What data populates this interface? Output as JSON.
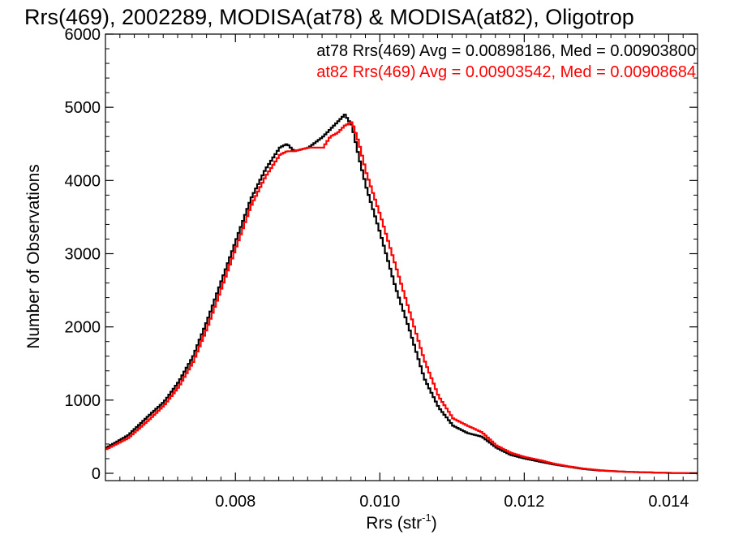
{
  "chart_data": {
    "type": "line",
    "title": "Rrs(469), 2002289, MODISA(at78) & MODISA(at82), Oligotrop",
    "xlabel": "Rrs (str",
    "xlabel_sup": "-1",
    "xlabel_tail": ")",
    "ylabel": "Number of Observations",
    "xlim": [
      0.0062,
      0.0144
    ],
    "ylim": [
      -100,
      6000
    ],
    "x_ticks": [
      0.008,
      0.01,
      0.012,
      0.014
    ],
    "x_tick_labels": [
      "0.008",
      "0.010",
      "0.012",
      "0.014"
    ],
    "y_ticks": [
      0,
      1000,
      2000,
      3000,
      4000,
      5000,
      6000
    ],
    "y_tick_labels": [
      "0",
      "1000",
      "2000",
      "3000",
      "4000",
      "5000",
      "6000"
    ],
    "grid": false,
    "annotations": [
      {
        "text": "at78 Rrs(469) Avg = 0.00898186, Med = 0.00903800",
        "color": "#000000"
      },
      {
        "text": "at82 Rrs(469) Avg = 0.00903542, Med = 0.00908684",
        "color": "#ff0000"
      }
    ],
    "series": [
      {
        "color": "#000000",
        "x": [
          0.0062,
          0.0065,
          0.0068,
          0.007,
          0.0072,
          0.0074,
          0.0076,
          0.0078,
          0.008,
          0.0082,
          0.0084,
          0.0086,
          0.0087,
          0.0088,
          0.009,
          0.0092,
          0.0093,
          0.0094,
          0.0095,
          0.0096,
          0.0097,
          0.0098,
          0.01,
          0.0102,
          0.0104,
          0.0106,
          0.0108,
          0.011,
          0.0112,
          0.0114,
          0.0116,
          0.0118,
          0.012,
          0.0122,
          0.0124,
          0.0126,
          0.0128,
          0.013,
          0.0132,
          0.0134,
          0.0136,
          0.0138,
          0.014,
          0.0142,
          0.0144
        ],
        "values": [
          350,
          520,
          800,
          980,
          1250,
          1600,
          2100,
          2650,
          3200,
          3750,
          4150,
          4450,
          4500,
          4400,
          4450,
          4600,
          4700,
          4800,
          4900,
          4750,
          4300,
          3900,
          3250,
          2550,
          1950,
          1300,
          900,
          650,
          550,
          500,
          350,
          250,
          200,
          160,
          120,
          90,
          60,
          40,
          30,
          20,
          15,
          10,
          5,
          3,
          0
        ]
      },
      {
        "color": "#ff0000",
        "x": [
          0.0062,
          0.0065,
          0.0068,
          0.007,
          0.0072,
          0.0074,
          0.0076,
          0.0078,
          0.008,
          0.0082,
          0.0084,
          0.0086,
          0.0087,
          0.0088,
          0.009,
          0.0092,
          0.0093,
          0.0094,
          0.0095,
          0.0096,
          0.0097,
          0.0098,
          0.01,
          0.0102,
          0.0104,
          0.0106,
          0.0108,
          0.011,
          0.0112,
          0.0114,
          0.0116,
          0.0118,
          0.012,
          0.0122,
          0.0124,
          0.0126,
          0.0128,
          0.013,
          0.0132,
          0.0134,
          0.0136,
          0.0138,
          0.014,
          0.0142,
          0.0144
        ],
        "values": [
          330,
          480,
          740,
          930,
          1180,
          1520,
          2000,
          2550,
          3100,
          3650,
          4050,
          4350,
          4400,
          4400,
          4450,
          4450,
          4600,
          4650,
          4750,
          4800,
          4500,
          4100,
          3500,
          2850,
          2200,
          1550,
          1050,
          750,
          650,
          560,
          380,
          280,
          220,
          180,
          130,
          95,
          65,
          45,
          30,
          20,
          15,
          10,
          5,
          3,
          0
        ]
      }
    ]
  }
}
